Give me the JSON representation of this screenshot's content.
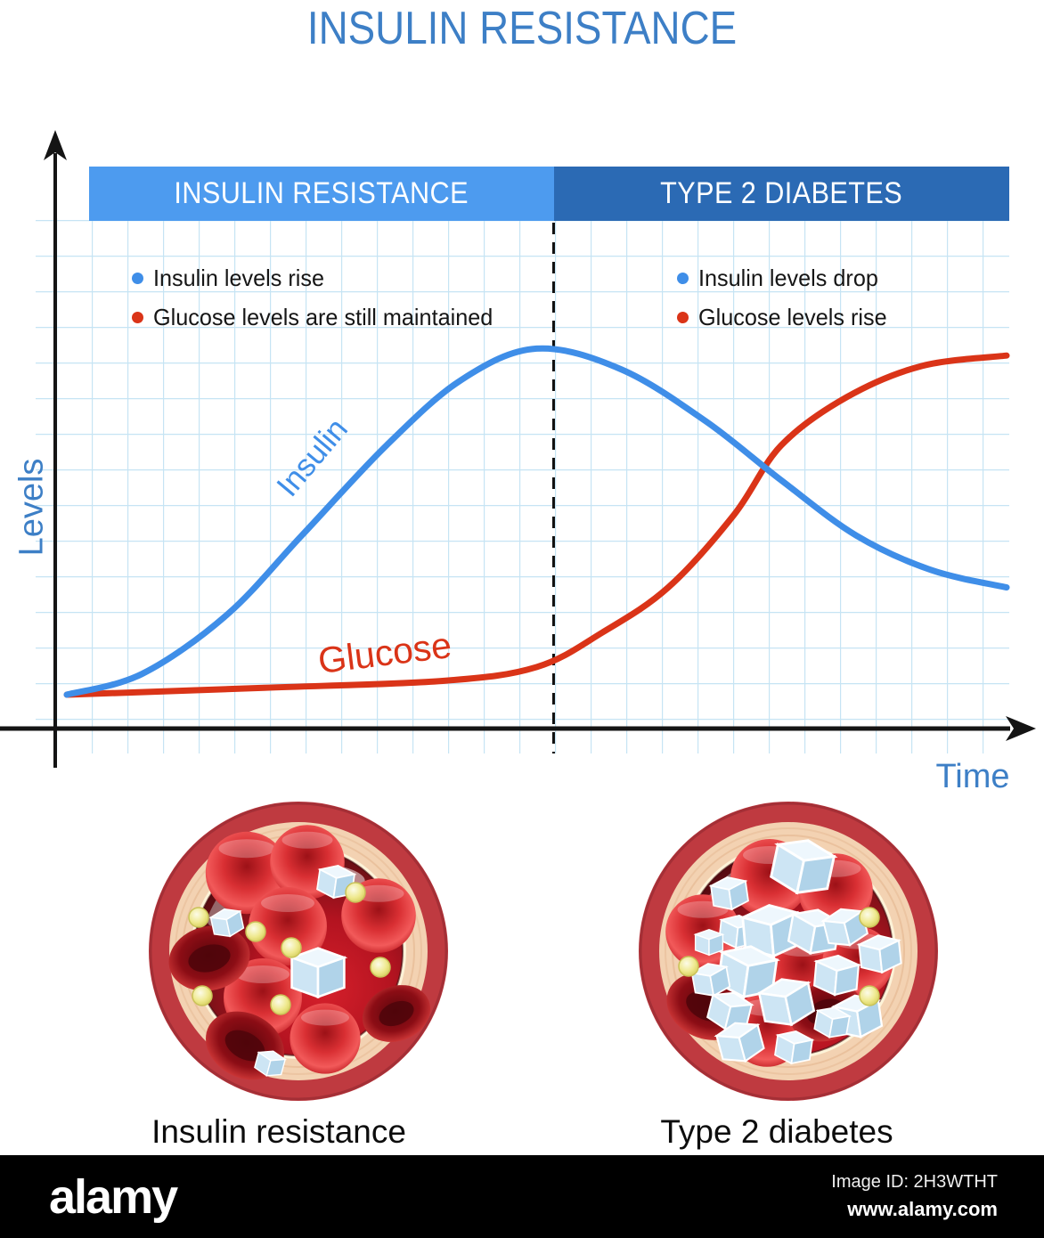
{
  "title": "INSULIN RESISTANCE",
  "colors": {
    "title_color": "#3d7fc6",
    "axis_color": "#141414",
    "grid_color": "#c6e4f4"
  },
  "chart_data": {
    "type": "line",
    "title": "INSULIN RESISTANCE",
    "xlabel": "Time",
    "ylabel": "Levels",
    "x_range": [
      0,
      100
    ],
    "y_range": [
      0,
      105
    ],
    "grid": true,
    "legend_position": "on-curve-labels",
    "phase_divider_x": 51.8,
    "phases": [
      {
        "label": "INSULIN RESISTANCE",
        "band_color": "#4d9bef",
        "notes": [
          {
            "text": "Insulin levels rise",
            "color": "#3f8ee8"
          },
          {
            "text": "Glucose levels are still maintained",
            "color": "#da3418"
          }
        ]
      },
      {
        "label": "TYPE 2 DIABETES",
        "band_color": "#2b6ab4",
        "notes": [
          {
            "text": "Insulin levels drop",
            "color": "#3f8ee8"
          },
          {
            "text": "Glucose levels rise",
            "color": "#da3418"
          }
        ]
      }
    ],
    "series": [
      {
        "name": "Insulin",
        "color": "#3f8ee8",
        "x": [
          0,
          8,
          17,
          25,
          34,
          42,
          50,
          59,
          68,
          76,
          84,
          92,
          100
        ],
        "y": [
          0,
          6,
          23,
          46,
          72,
          91,
          100,
          94,
          79,
          62,
          46,
          36,
          31
        ]
      },
      {
        "name": "Glucose",
        "color": "#da3418",
        "x": [
          0,
          21,
          40,
          50,
          57,
          64,
          71,
          76,
          83,
          91,
          100
        ],
        "y": [
          0,
          2,
          4,
          8,
          18,
          31,
          52,
          72,
          86,
          95,
          98
        ]
      }
    ]
  },
  "vessels": {
    "left_caption": "Insulin resistance",
    "right_caption": "Type 2 diabetes",
    "wall_color": "#bf3a40",
    "inner_wall_color": "#f3d2b2",
    "blood_color": "#a91320",
    "red_blood_cell_color": "#d92f33",
    "sugar_cube_color": "#cde5f4",
    "lipid_dot_color": "#efe98f"
  },
  "footer": {
    "brand": "alamy",
    "image_id": "Image ID: 2H3WTHT",
    "url": "www.alamy.com"
  }
}
